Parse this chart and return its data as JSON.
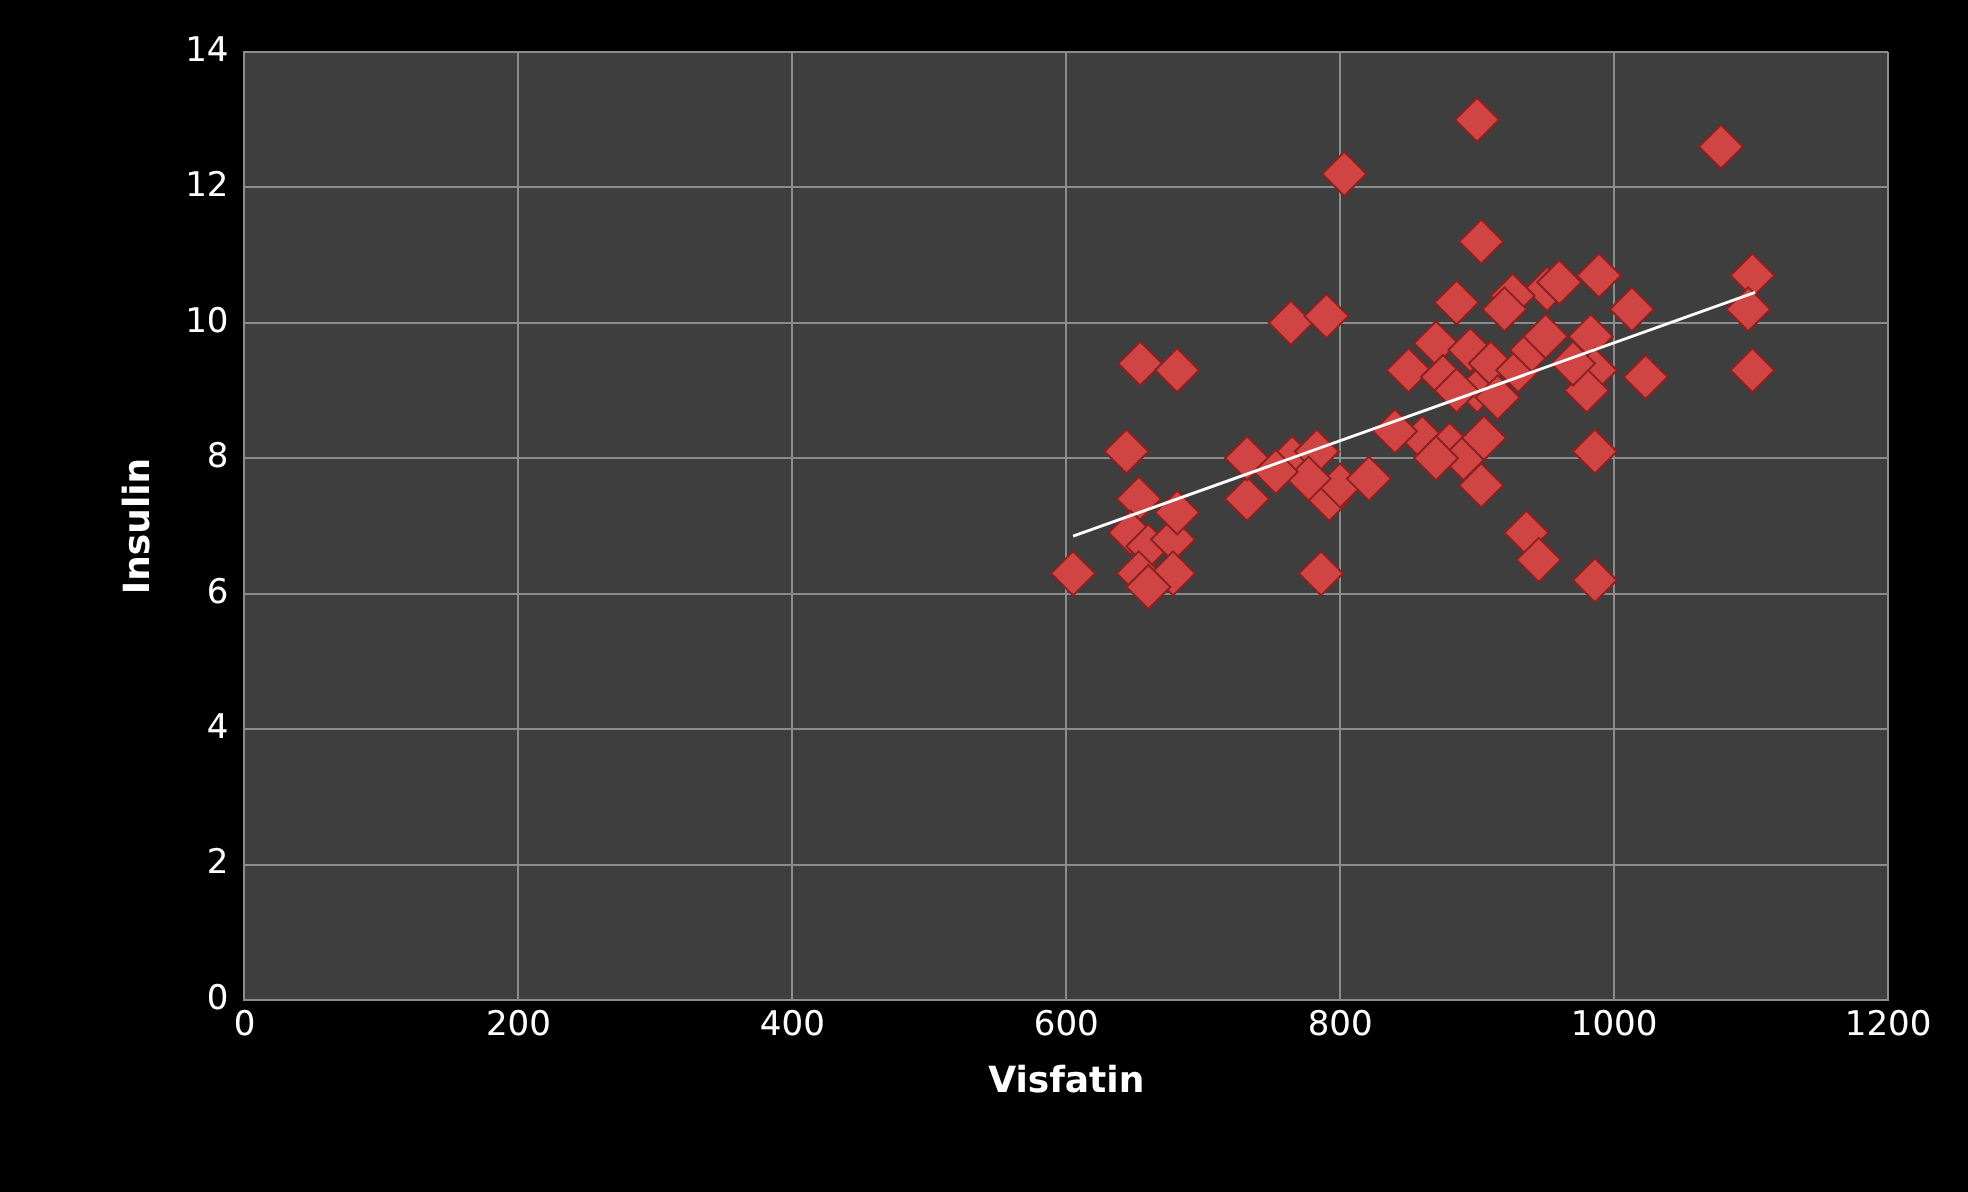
{
  "chart_data": {
    "type": "scatter",
    "xlabel": "Visfatin",
    "ylabel": "Insulin",
    "xlim": [
      0,
      1200
    ],
    "xticks": [
      0,
      200,
      400,
      600,
      800,
      1000,
      1200
    ],
    "ylim": [
      0,
      14
    ],
    "yticks": [
      0,
      2,
      4,
      6,
      8,
      10,
      12,
      14
    ],
    "grid": true,
    "legend": false,
    "marker": "diamond",
    "series": [
      {
        "color": "#d04444",
        "x": [
          605,
          644,
          654,
          681,
          653,
          647,
          660,
          653,
          678,
          678,
          681,
          660,
          732,
          732,
          764,
          790,
          803,
          786,
          765,
          783,
          792,
          800,
          777,
          821,
          753,
          1078,
          1101,
          1098,
          1101,
          1023,
          986,
          986,
          936,
          945,
          989,
          1013,
          951,
          926,
          983,
          986,
          903,
          903,
          850,
          860,
          870,
          875,
          880,
          885,
          890,
          895,
          900,
          900,
          905,
          910,
          915,
          920,
          930,
          940,
          950,
          960,
          840,
          870,
          885,
          980,
          970
        ],
        "values": [
          6.3,
          8.1,
          9.4,
          9.3,
          7.4,
          6.9,
          6.7,
          6.3,
          6.8,
          6.3,
          7.2,
          6.1,
          7.4,
          8.0,
          10.0,
          10.1,
          12.2,
          6.3,
          8.0,
          8.1,
          7.4,
          7.6,
          7.7,
          7.7,
          7.8,
          12.6,
          10.7,
          10.2,
          9.3,
          9.2,
          8.1,
          6.2,
          6.9,
          6.5,
          10.7,
          10.2,
          10.5,
          10.4,
          9.8,
          9.3,
          11.2,
          7.6,
          9.3,
          8.3,
          9.7,
          9.2,
          8.2,
          10.3,
          8.0,
          9.6,
          9.0,
          13.0,
          8.3,
          9.4,
          8.9,
          10.2,
          9.3,
          9.6,
          9.8,
          10.6,
          8.4,
          8.0,
          9.0,
          9.0,
          9.4
        ]
      },
      {
        "type": "line",
        "color": "#ffffff",
        "marker": "none",
        "x": [
          605,
          1103
        ],
        "values": [
          6.85,
          10.45
        ]
      }
    ]
  }
}
